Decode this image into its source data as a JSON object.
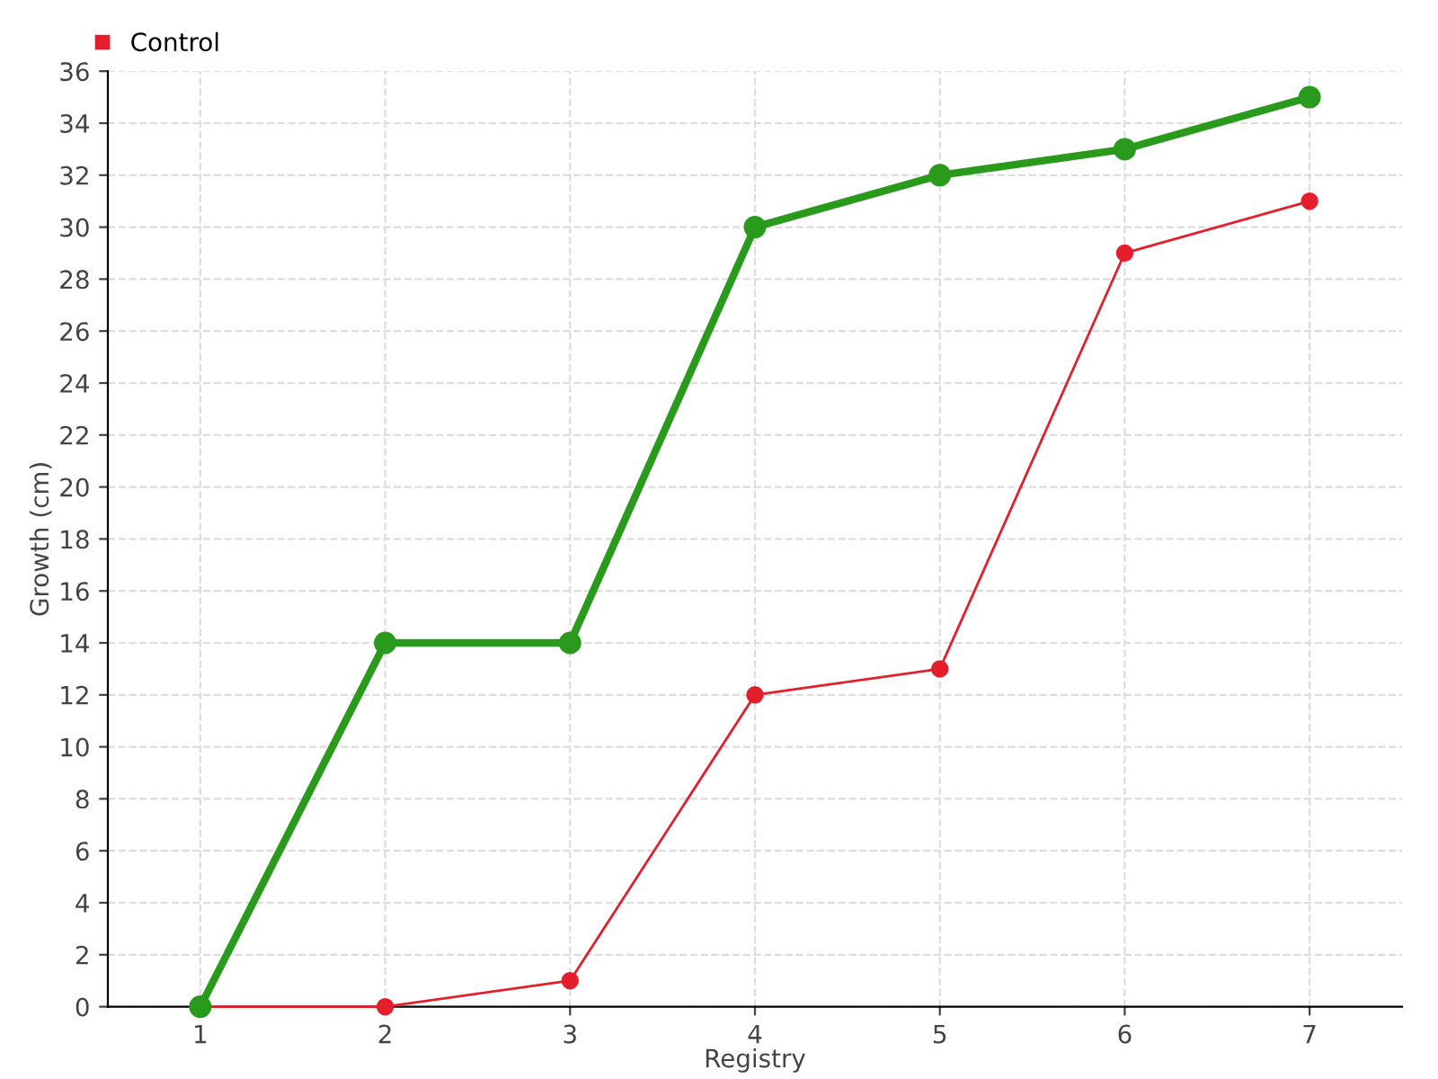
{
  "chart_data": {
    "type": "line",
    "xlabel": "Registry",
    "ylabel": "Growth (cm)",
    "x": [
      1,
      2,
      3,
      4,
      5,
      6,
      7
    ],
    "series": [
      {
        "color": "#2a9a1c",
        "values": [
          0,
          14,
          14,
          30,
          32,
          33,
          35
        ]
      },
      {
        "name": "Control",
        "color": "#e41e2b",
        "values": [
          0,
          0,
          1,
          12,
          13,
          29,
          31
        ]
      }
    ],
    "xlim": [
      0.5,
      7.5
    ],
    "xticks": [
      1,
      2,
      3,
      4,
      5,
      6,
      7
    ],
    "ylim": [
      0,
      36
    ],
    "yticks": [
      0,
      2,
      4,
      6,
      8,
      10,
      12,
      14,
      16,
      18,
      20,
      22,
      24,
      26,
      28,
      30,
      32,
      34,
      36
    ],
    "grid": true,
    "legend": "top left",
    "marker": "circle",
    "line_style": "solid"
  }
}
